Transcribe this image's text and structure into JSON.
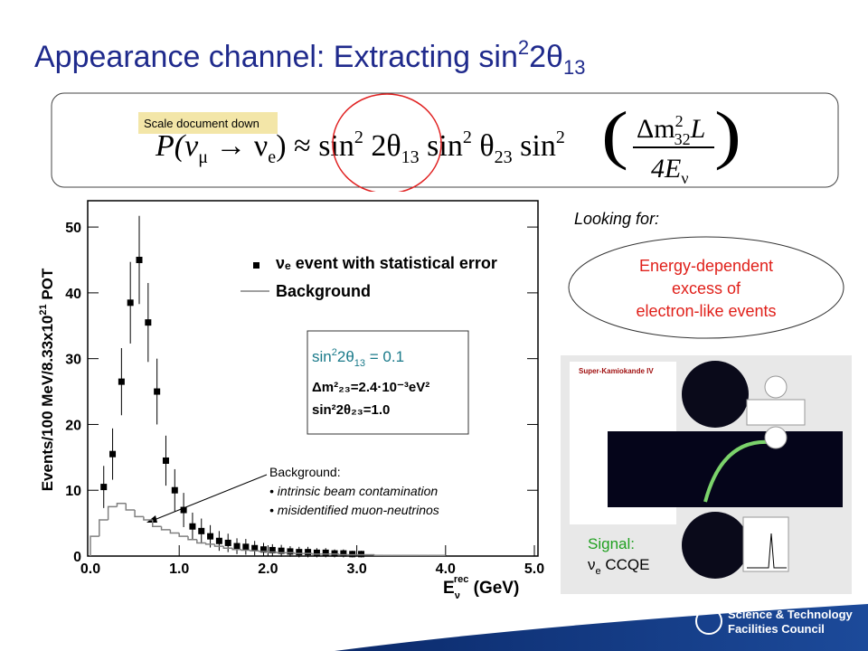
{
  "slide": {
    "title": [
      "Appearance channel: Extracting sin",
      "2",
      "2θ",
      "13"
    ],
    "tooltip": "Scale document down",
    "formula": [
      "P(ν",
      "μ",
      " → ν",
      "e",
      ")",
      " ≈ ",
      "sin",
      "2",
      " 2θ",
      "13",
      " sin",
      "2",
      " θ",
      "23",
      " sin",
      "2",
      "(",
      "Δm",
      "2",
      "32",
      "L",
      "4E",
      "ν",
      ")"
    ],
    "looking_for": "Looking for:",
    "target": [
      "Energy-dependent",
      "excess of",
      "electron-like events"
    ],
    "event_display": {
      "title": "Super-Kamiokande IV"
    },
    "signal": [
      "Signal:",
      "ν",
      "e",
      " CCQE"
    ],
    "annotation": {
      "heading": "Background:",
      "items": [
        "• intrinsic beam contamination",
        "• misidentified muon-neutrinos"
      ]
    },
    "inset": {
      "line1": [
        "sin",
        "2",
        "2θ",
        "13",
        " = 0.1"
      ],
      "line2": "Δm²₂₃=2.4·10⁻³eV²",
      "line3": "sin²2θ₂₃=1.0"
    },
    "logo": [
      "Science & Technology",
      "Facilities Council"
    ]
  },
  "chart_data": {
    "type": "histogram",
    "ylabel": [
      "Events/100 MeV/8.33x10",
      "21",
      " POT"
    ],
    "xlabel": [
      "E",
      "ν",
      "rec",
      " (GeV)"
    ],
    "xlim": [
      0,
      5
    ],
    "ylim": [
      0,
      54
    ],
    "xticks": [
      {
        "value": 0,
        "label": "0.0"
      },
      {
        "value": 1,
        "label": "1.0"
      },
      {
        "value": 2,
        "label": "2.0"
      },
      {
        "value": 3,
        "label": "3.0"
      },
      {
        "value": 4,
        "label": "4.0"
      },
      {
        "value": 5,
        "label": "5.0"
      }
    ],
    "yticks": [
      0,
      10,
      20,
      30,
      40,
      50
    ],
    "series": [
      {
        "type": "errorbar",
        "name": "νₑ event with statistical error",
        "color": "#000000",
        "x": [
          0.15,
          0.25,
          0.35,
          0.45,
          0.55,
          0.65,
          0.75,
          0.85,
          0.95,
          1.05,
          1.15,
          1.25,
          1.35,
          1.45,
          1.55,
          1.65,
          1.75,
          1.85,
          1.95,
          2.05,
          2.15,
          2.25,
          2.35,
          2.45,
          2.55,
          2.65,
          2.75,
          2.85,
          2.95,
          3.05
        ],
        "values": [
          10.5,
          15.5,
          26.5,
          38.5,
          45,
          35.5,
          25,
          14.5,
          10,
          7,
          4.5,
          3.8,
          3,
          2.3,
          2,
          1.5,
          1.4,
          1.2,
          1,
          0.9,
          0.8,
          0.7,
          0.6,
          0.6,
          0.5,
          0.5,
          0.4,
          0.4,
          0.3,
          0.3
        ],
        "errors": [
          3.2,
          3.9,
          5.1,
          6.2,
          6.7,
          6,
          5,
          3.8,
          3.2,
          2.6,
          2.1,
          1.9,
          1.7,
          1.5,
          1.4,
          1.2,
          1.2,
          1.1,
          1,
          0.9,
          0.9,
          0.8,
          0.8,
          0.8,
          0.7,
          0.7,
          0.6,
          0.6,
          0.5,
          0.5
        ]
      },
      {
        "type": "step",
        "name": "Background",
        "color": "#808080",
        "bins": [
          0,
          0.1,
          0.2,
          0.3,
          0.4,
          0.5,
          0.6,
          0.7,
          0.8,
          0.9,
          1,
          1.1,
          1.2,
          1.3,
          1.4,
          1.5,
          1.6,
          1.7,
          1.8,
          1.9,
          2,
          2.1,
          2.2,
          2.3,
          2.4,
          2.5,
          2.6,
          2.7,
          2.8,
          2.9,
          3,
          3.1,
          3.2,
          3.3,
          3.4,
          3.5,
          3.6,
          3.7,
          3.8,
          3.9,
          4
        ],
        "values": [
          3,
          5.5,
          7.5,
          8,
          7,
          6,
          5.5,
          4.5,
          4,
          3.5,
          3,
          2.5,
          2,
          1.8,
          1.5,
          1.2,
          1,
          0.9,
          0.8,
          0.7,
          0.6,
          0.5,
          0.5,
          0.4,
          0.4,
          0.3,
          0.3,
          0.3,
          0.2,
          0.2,
          0.2,
          0.2,
          0.1,
          0.1,
          0.1,
          0.1,
          0.1,
          0.1,
          0.1,
          0.1
        ]
      }
    ]
  }
}
